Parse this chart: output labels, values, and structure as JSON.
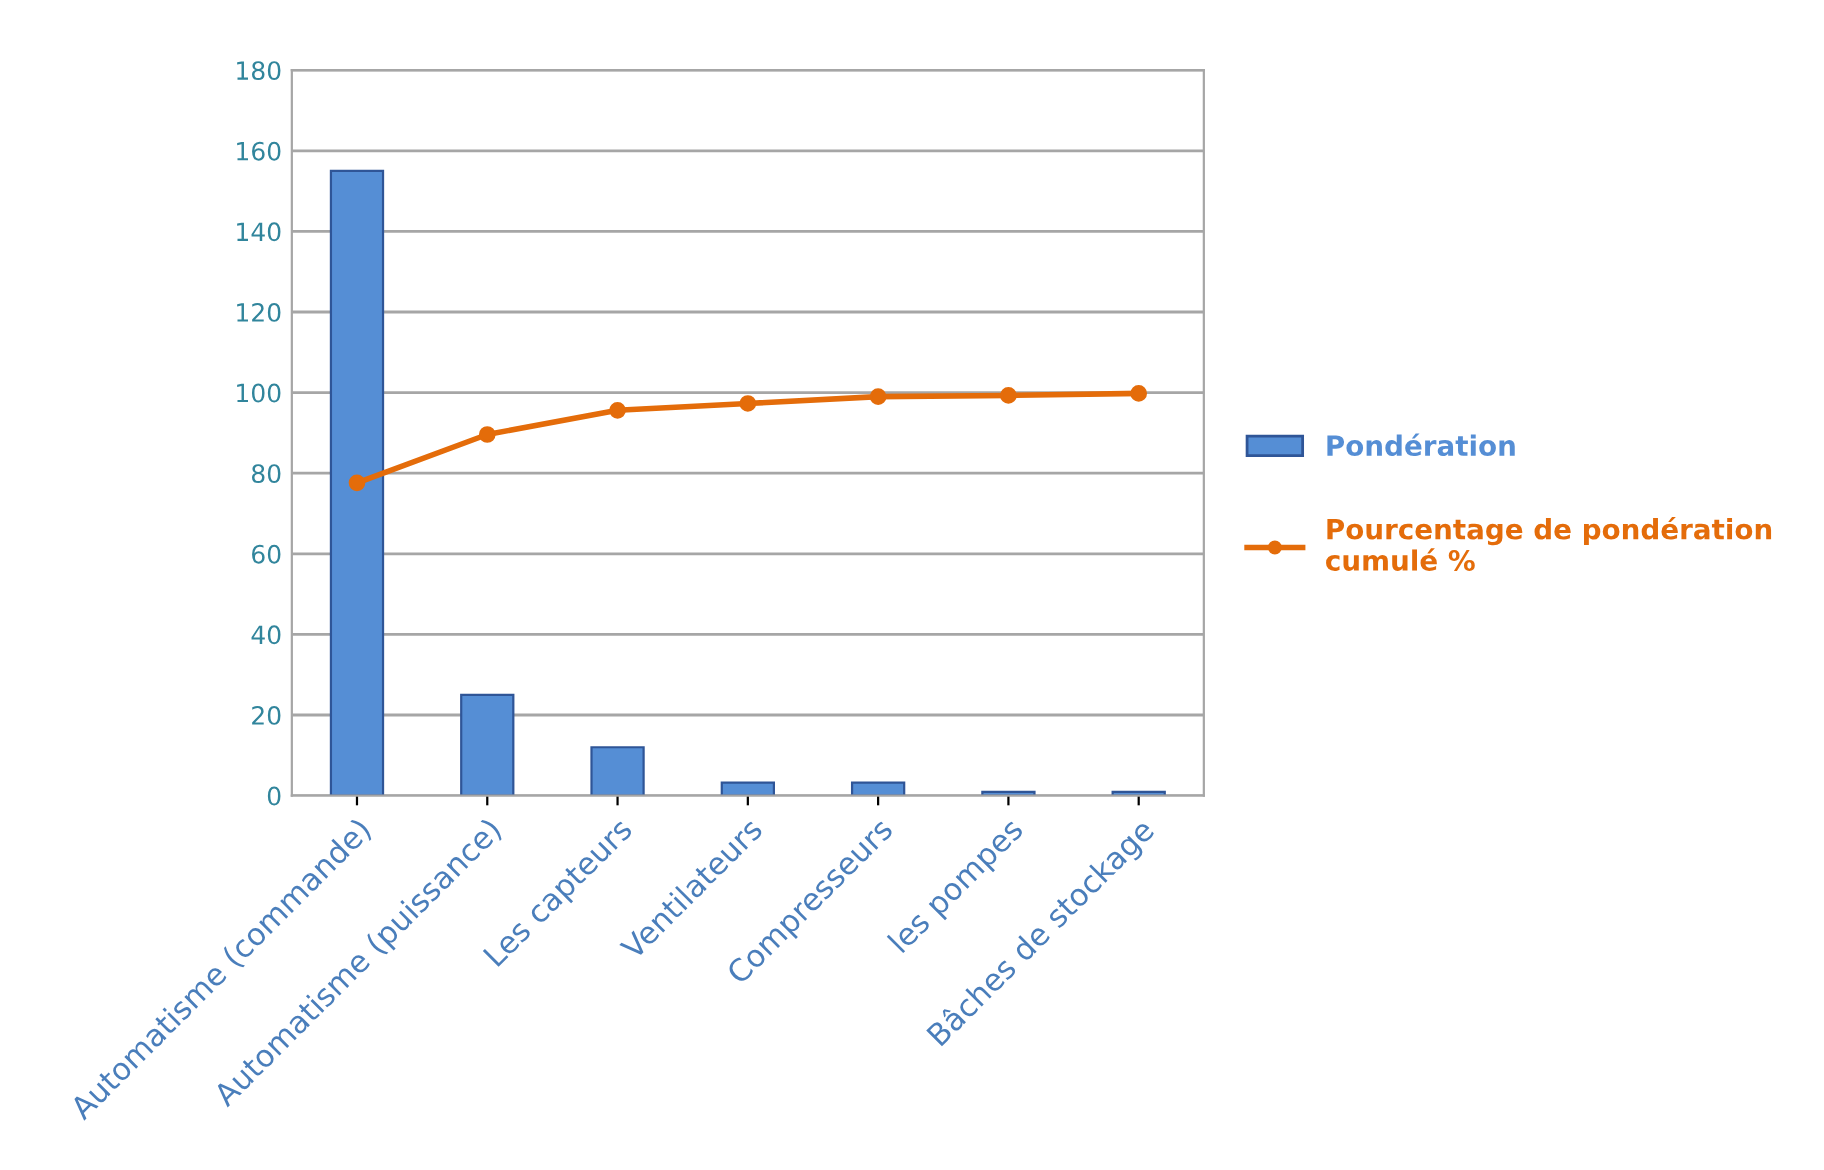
{
  "chart_data": {
    "type": "bar",
    "categories": [
      "Automatisme (commande)",
      "Automatisme (puissance)",
      "Les capteurs",
      "Ventilateurs",
      "Compresseurs",
      "les pompes",
      "Bâches de stockage"
    ],
    "series": [
      {
        "name": "Pondération",
        "color": "#558ed5",
        "values": [
          155,
          25,
          12,
          3.2,
          3.2,
          0.9,
          0.9
        ]
      },
      {
        "name": "Pourcentage de pondération cumulé %",
        "type": "line",
        "color": "#e46c0a",
        "values": [
          77.6,
          89.6,
          95.6,
          97.3,
          99,
          99.3,
          99.8
        ]
      }
    ],
    "ylim": [
      0,
      180
    ],
    "yticks": [
      0,
      20,
      40,
      60,
      80,
      100,
      120,
      140,
      160,
      180
    ],
    "grid": "y",
    "legend": "right",
    "marker": "circle"
  }
}
